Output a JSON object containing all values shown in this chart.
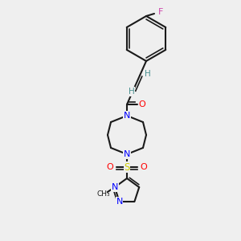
{
  "background_color": "#efefef",
  "bond_color": "#1a1a1a",
  "colors": {
    "F": "#cc44aa",
    "N": "#0000ff",
    "O": "#ff0000",
    "S": "#cccc00",
    "H": "#4a9090"
  },
  "lw": 1.5,
  "lw2": 1.2
}
